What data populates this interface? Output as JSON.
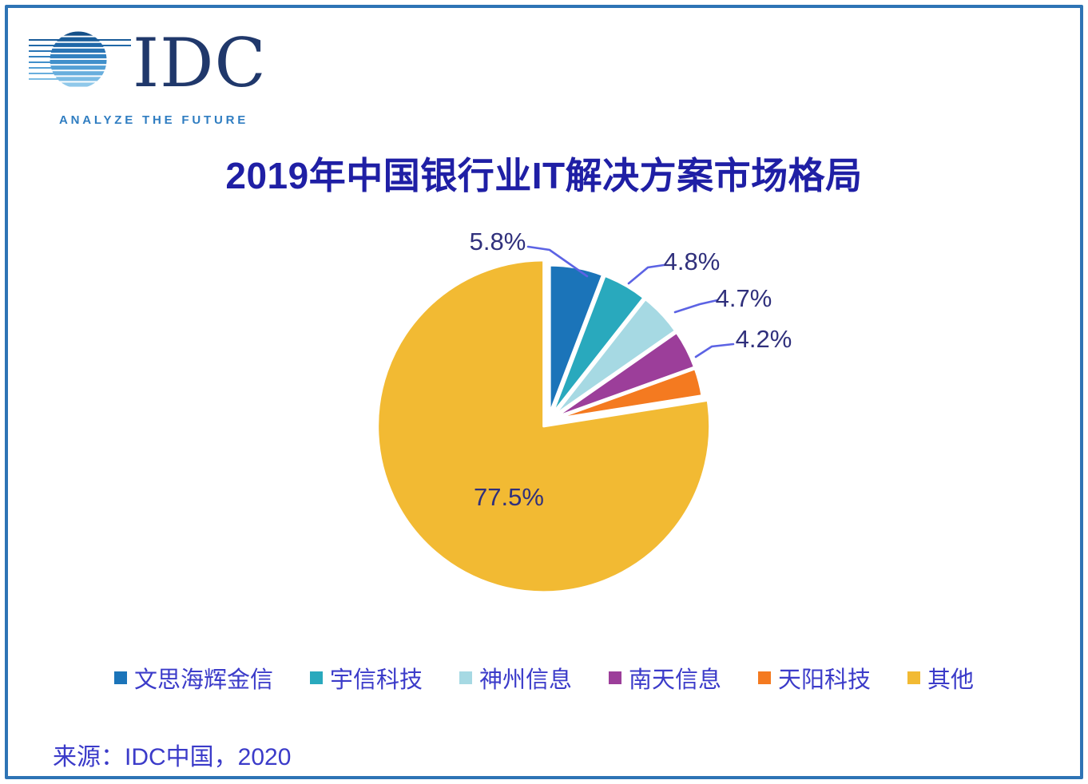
{
  "logo": {
    "brand": "IDC",
    "tagline": "ANALYZE THE FUTURE"
  },
  "title": "2019年中国银行业IT解决方案市场格局",
  "source": "来源：IDC中国，2020",
  "colors": {
    "frame": "#2E74B5",
    "title_text": "#1F1FA5",
    "percent_label_text": "#30307C",
    "leader_line": "#5C63E4",
    "legend_text": "#3B3BC9",
    "source_text": "#3B3BC9",
    "brand_text": "#20386B",
    "tagline_text": "#2F7DC1"
  },
  "chart_data": {
    "type": "pie",
    "title": "2019年中国银行业IT解决方案市场格局",
    "unit": "percent market share",
    "start_angle_deg": 0,
    "direction": "clockwise",
    "legend_position": "bottom",
    "slices": [
      {
        "label": "文思海辉金信",
        "value": 5.8,
        "data_label": "5.8%",
        "color": "#1B74B9",
        "label_visible": true
      },
      {
        "label": "宇信科技",
        "value": 4.8,
        "data_label": "4.8%",
        "color": "#29A9BD",
        "label_visible": true
      },
      {
        "label": "神州信息",
        "value": 4.7,
        "data_label": "4.7%",
        "color": "#A6D9E3",
        "label_visible": true
      },
      {
        "label": "南天信息",
        "value": 4.2,
        "data_label": "4.2%",
        "color": "#9C3E9A",
        "label_visible": true
      },
      {
        "label": "天阳科技",
        "value": 3.0,
        "data_label": "",
        "color": "#F47A20",
        "label_visible": false
      },
      {
        "label": "其他",
        "value": 77.5,
        "data_label": "77.5%",
        "color": "#F2BA33",
        "label_visible": true
      }
    ]
  }
}
